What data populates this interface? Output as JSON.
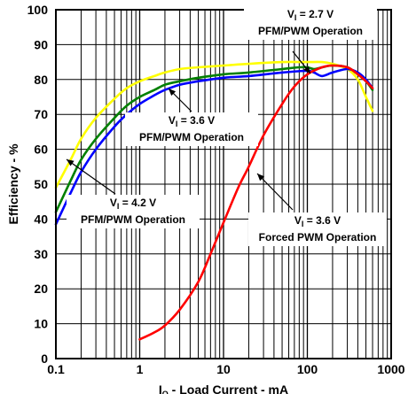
{
  "chart_data": {
    "type": "line",
    "title": "",
    "xlabel": "I",
    "xlabel_sub": "O",
    "xlabel_rest": " - Load Current - mA",
    "ylabel": "Efficiency - %",
    "xscale": "log",
    "xlim": [
      0.1,
      1000
    ],
    "ylim": [
      0,
      100
    ],
    "grid": true,
    "x_tick_labels": [
      "0.1",
      "1",
      "10",
      "100",
      "1000"
    ],
    "x_tick_values": [
      0.1,
      1,
      10,
      100,
      1000
    ],
    "y_tick_labels": [
      "0",
      "10",
      "20",
      "30",
      "40",
      "50",
      "60",
      "70",
      "80",
      "90",
      "100"
    ],
    "y_tick_values": [
      0,
      10,
      20,
      30,
      40,
      50,
      60,
      70,
      80,
      90,
      100
    ],
    "series": [
      {
        "color": "#ffff00",
        "x": [
          0.1,
          0.15,
          0.2,
          0.3,
          0.5,
          0.7,
          1,
          1.5,
          2,
          3,
          5,
          10,
          20,
          50,
          100,
          150,
          200,
          300,
          400,
          500,
          600
        ],
        "y": [
          49,
          57,
          63,
          69,
          74.5,
          77.5,
          79.5,
          81,
          82,
          83,
          83.5,
          84,
          84.5,
          85,
          85,
          85,
          84.5,
          83,
          80,
          75,
          71
        ]
      },
      {
        "color": "#008000",
        "x": [
          0.1,
          0.15,
          0.2,
          0.3,
          0.5,
          0.7,
          1,
          1.5,
          2,
          3,
          5,
          10,
          20,
          50,
          80,
          100,
          120,
          150,
          200,
          300,
          400,
          500,
          600
        ],
        "y": [
          42,
          51,
          57,
          63,
          69,
          72.5,
          75,
          77,
          78.5,
          79.5,
          80.5,
          81.5,
          82,
          83,
          83.5,
          83.5,
          83,
          83.5,
          84,
          83.5,
          81.5,
          79.5,
          77
        ]
      },
      {
        "color": "#0000ff",
        "x": [
          0.1,
          0.15,
          0.2,
          0.3,
          0.5,
          0.7,
          1,
          1.5,
          2,
          3,
          5,
          10,
          20,
          50,
          100,
          120,
          150,
          200,
          300,
          400,
          500,
          600
        ],
        "y": [
          38.5,
          47.5,
          53.5,
          60,
          66.5,
          70,
          73,
          75.5,
          77,
          78.5,
          79.5,
          80.5,
          81,
          82,
          82.5,
          82,
          81,
          82,
          83,
          82,
          80,
          77.5
        ]
      },
      {
        "color": "#ff0000",
        "x": [
          1,
          1.5,
          2,
          3,
          5,
          7,
          10,
          15,
          20,
          30,
          50,
          70,
          100,
          150,
          200,
          300,
          400,
          500,
          600
        ],
        "y": [
          5.5,
          7.5,
          9.5,
          14,
          22,
          30,
          39,
          49,
          55,
          64,
          73,
          78,
          81.5,
          83.5,
          84,
          83.5,
          81.5,
          79.5,
          77.5
        ]
      }
    ],
    "annotations": [
      {
        "lines": [
          [
            "V",
            "I",
            " = 2.7 V"
          ],
          [
            "PFM/PWM Operation"
          ]
        ]
      },
      {
        "lines": [
          [
            "V",
            "I",
            " = 3.6 V"
          ],
          [
            "PFM/PWM Operation"
          ]
        ]
      },
      {
        "lines": [
          [
            "V",
            "I",
            " = 4.2 V"
          ],
          [
            "PFM/PWM Operation"
          ]
        ]
      },
      {
        "lines": [
          [
            "V",
            "I",
            " = 3.6 V"
          ],
          [
            "Forced PWM Operation"
          ]
        ]
      }
    ]
  }
}
